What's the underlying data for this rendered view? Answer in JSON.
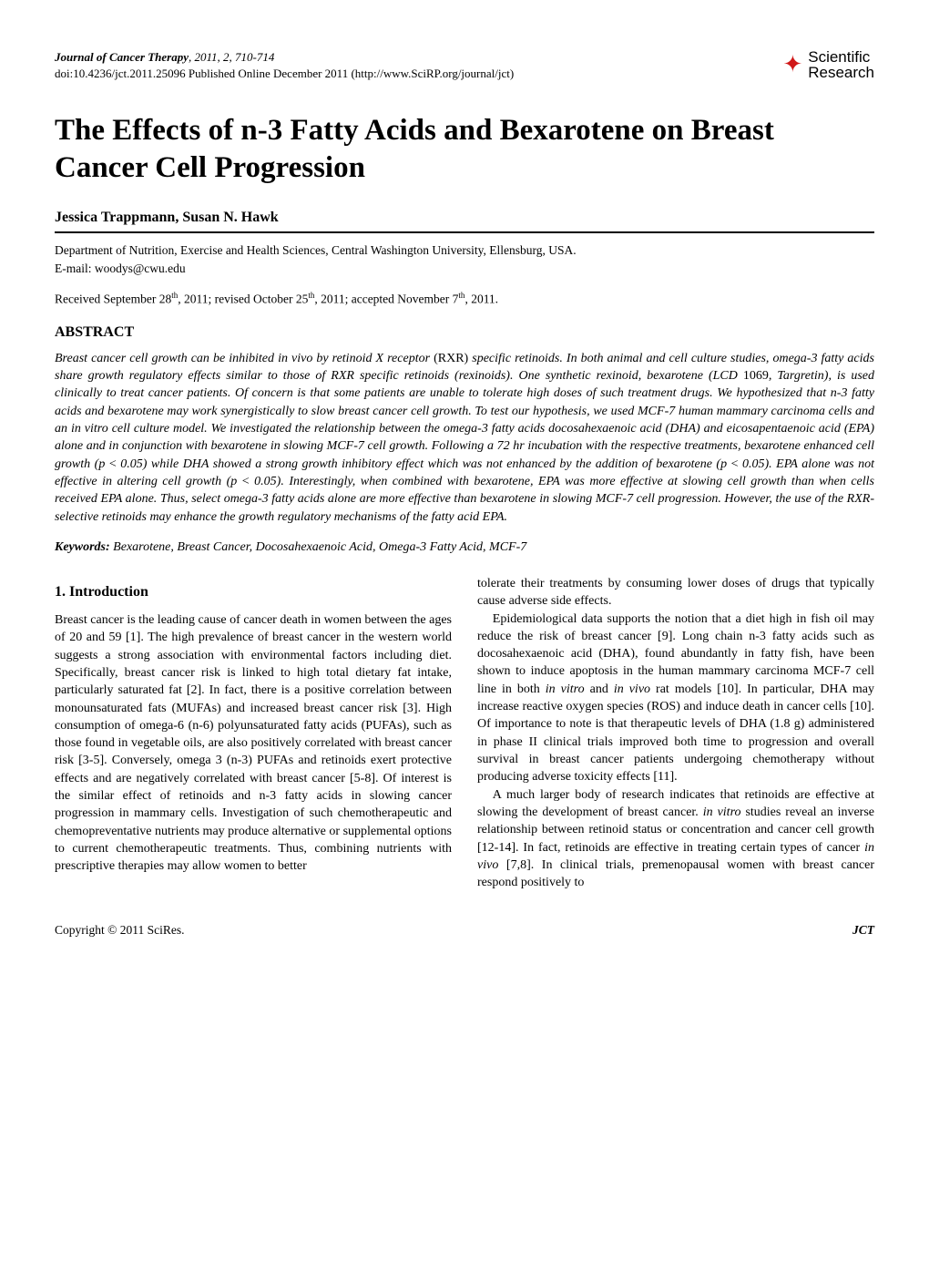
{
  "header": {
    "journal_name": "Journal of Cancer Therapy",
    "year_vol_pages": ", 2011, 2, 710-714",
    "doi_line": "doi:10.4236/jct.2011.25096 Published Online December 2011 (http://www.SciRP.org/journal/jct)",
    "logo_top": "Scientific",
    "logo_bottom": "Research"
  },
  "title": "The Effects of n-3 Fatty Acids and Bexarotene on Breast Cancer Cell Progression",
  "authors": "Jessica Trappmann, Susan N. Hawk",
  "affiliation": "Department of Nutrition, Exercise and Health Sciences, Central Washington University, Ellensburg, USA.",
  "email": "E-mail: woodys@cwu.edu",
  "dates": {
    "received_prefix": "Received September 28",
    "received_suffix": ", 2011; revised October 25",
    "revised_suffix": ", 2011; accepted November 7",
    "accepted_suffix": ", 2011.",
    "th": "th"
  },
  "abstract_heading": "ABSTRACT",
  "abstract": {
    "p1a": "Breast cancer cell growth can be inhibited in vivo by retinoid X receptor ",
    "rxr": "(RXR)",
    "p1b": " specific retinoids. In both animal and cell culture studies, omega-3 fatty acids share growth regulatory effects similar to those of RXR specific retinoids (rexinoids). One synthetic rexinoid, bexarotene (LCD ",
    "num1069": "1069",
    "p1c": ", Targretin), is used clinically to treat cancer patients. Of concern is that some patients are unable to tolerate high doses of such treatment drugs. We hypothesized that n-3 fatty acids and bexarotene may work synergistically to slow breast cancer cell growth. To test our hypothesis, we used MCF-7 human mammary carcinoma cells and an in vitro cell culture model. We investigated the relationship between the omega-3 fatty acids docosahexaenoic acid (DHA) and eicosapentaenoic acid (EPA) alone and in conjunction with bexarotene in slowing MCF-7 cell growth. Following a 72 hr incubation with the respective treatments, bexarotene enhanced cell growth (p ",
    "lt": "<",
    "p1d": " 0.05) while DHA showed a strong growth inhibitory effect which was not enhanced by the addition of bexarotene (p ",
    "p1e": " 0.05). EPA alone was not effective in altering cell growth (p ",
    "p1f": " 0.05). Interestingly, when combined with bexarotene, EPA was more effective at slowing cell growth than when cells received EPA alone. Thus, select omega-3 fatty acids alone are more effective than bexarotene in slowing MCF-7 cell progression. However, the use of the RXR-selective retinoids may enhance the growth regulatory mechanisms of the fatty acid EPA."
  },
  "keywords_label": "Keywords:",
  "keywords_value": " Bexarotene, Breast Cancer, Docosahexaenoic Acid, Omega-3 Fatty Acid, MCF-7",
  "intro_heading": "1. Introduction",
  "body": {
    "p1": "Breast cancer is the leading cause of cancer death in women between the ages of 20 and 59 [1]. The high prevalence of breast cancer in the western world suggests a strong association with environmental factors including diet. Specifically, breast cancer risk is linked to high total dietary fat intake, particularly saturated fat [2]. In fact, there is a positive correlation between monounsaturated fats (MUFAs) and increased breast cancer risk [3]. High consumption of omega-6 (n-6) polyunsaturated fatty acids (PUFAs), such as those found in vegetable oils, are also positively correlated with breast cancer risk [3-5]. Conversely, omega 3 (n-3) PUFAs and retinoids exert protective effects and are negatively correlated with breast cancer [5-8]. Of interest is the similar effect of retinoids and n-3 fatty acids in slowing cancer progression in mammary cells. Investigation of such chemotherapeutic and chemopreventative nutrients may produce alternative or supplemental options to current chemotherapeutic treatments. Thus, combining nutrients with prescriptive therapies may allow women to better",
    "p2": "tolerate their treatments by consuming lower doses of drugs that typically cause adverse side effects.",
    "p3a": "Epidemiological data supports the notion that a diet high in fish oil may reduce the risk of breast cancer [9]. Long chain n-3 fatty acids such as docosahexaenoic acid (DHA), found abundantly in fatty fish, have been shown to induce apoptosis in the human mammary carcinoma MCF-7 cell line in both ",
    "invitro": "in vitro",
    "p3b": " and ",
    "invivo": "in vivo",
    "p3c": " rat models [10]. In particular, DHA may increase reactive oxygen species (ROS) and induce death in cancer cells [10]. Of importance to note is that therapeutic levels of DHA (1.8 g) administered in phase II clinical trials improved both time to progression and overall survival in breast cancer patients undergoing chemotherapy without producing adverse toxicity effects [11].",
    "p4a": "A much larger body of research indicates that retinoids are effective at slowing the development of breast cancer. ",
    "p4b": " studies reveal an inverse relationship between retinoid status or concentration and cancer cell growth [12-14]. In fact, retinoids are effective in treating certain types of cancer ",
    "p4c": " [7,8]. In clinical trials, premenopausal women with breast cancer respond positively to"
  },
  "footer": {
    "left": "Copyright © 2011 SciRes.",
    "right": "JCT"
  },
  "colors": {
    "logo_red": "#d01818",
    "text": "#000000",
    "bg": "#ffffff"
  }
}
